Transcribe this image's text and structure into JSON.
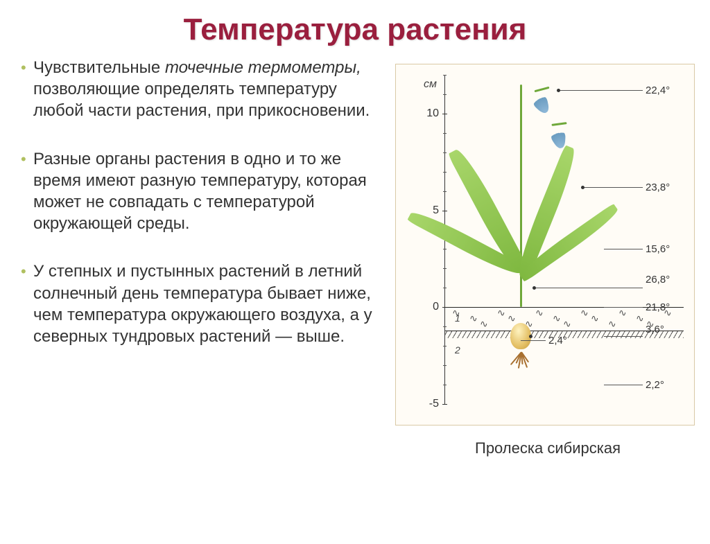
{
  "title": "Температура растения",
  "bullets": [
    {
      "html": "Чувствительные <em>точечные термометры,</em> позволяющие определять температуру любой части растения, при прикосновении."
    },
    {
      "html": "Разные органы растения в одно и то же время имеют разную температуру, которая может не совпадать с температурой окружающей среды."
    },
    {
      "html": "У степных и пустынных растений в летний солнечный день температура бывает ниже, чем температура окружающего воздуха, а у северных тундровых растений — выше."
    }
  ],
  "diagram": {
    "caption": "Пролеска сибирская",
    "unit": "см",
    "axis": {
      "top_cm": 12,
      "bottom_cm": -5,
      "major_ticks": [
        {
          "value": 10,
          "label": "10"
        },
        {
          "value": 5,
          "label": "5"
        },
        {
          "value": 0,
          "label": "0"
        },
        {
          "value": -5,
          "label": "-5"
        }
      ]
    },
    "soil": {
      "surface_cm": 0,
      "layer1_bottom_cm": -1.2,
      "layer2_bottom_cm": -5,
      "layer1_label": "1",
      "layer2_label": "2"
    },
    "temps": [
      {
        "cm": 11.2,
        "label": "22,4°",
        "plant": true
      },
      {
        "cm": 6.2,
        "label": "23,8°",
        "plant": true
      },
      {
        "cm": 3.0,
        "label": "15,6°",
        "plant": false
      },
      {
        "cm": 1.0,
        "label": "26,8°",
        "plant": true
      },
      {
        "cm": 0.0,
        "label": "21,8°",
        "plant": false
      },
      {
        "cm": -1.5,
        "label": "2,4°",
        "plant": true
      },
      {
        "cm": -1.5,
        "label": "3,6°",
        "plant": false
      },
      {
        "cm": -4.0,
        "label": "2,2°",
        "plant": false
      }
    ],
    "colors": {
      "title": "#9a1f3e",
      "bullet_dot": "#b0c060",
      "text": "#333333",
      "leaf_from": "#7fb840",
      "leaf_to": "#a8d66a",
      "flower_from": "#8fb8d8",
      "flower_to": "#6a9cc0",
      "bulb_from": "#fff3c0",
      "bulb_mid": "#e4c066",
      "bulb_to": "#c49a3a",
      "root": "#a87030",
      "box_border": "#d9c9a5",
      "box_bg": "#fffcf6"
    }
  }
}
